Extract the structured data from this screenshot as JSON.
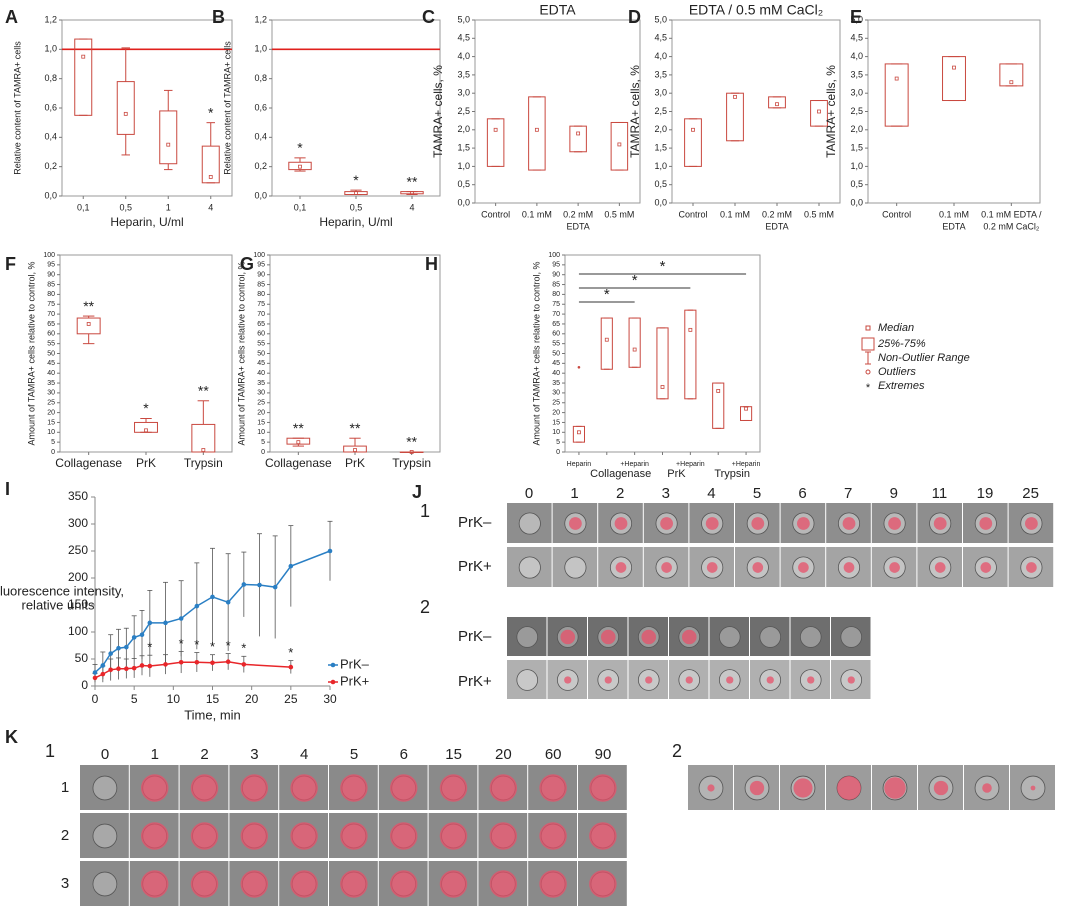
{
  "chart_data": [
    {
      "panel": "A",
      "type": "box",
      "ylabel": "Relative content of TAMRA+ cells",
      "xlabel": "Heparin, U/ml",
      "color": "#c9483f",
      "categories": [
        "0,1",
        "0,5",
        "1",
        "4"
      ],
      "ylim": [
        0,
        1.2
      ],
      "yticks": [
        {
          "value": 0,
          "label": "0,0"
        },
        {
          "value": 0.2,
          "label": "0,2"
        },
        {
          "value": 0.4,
          "label": "0,4"
        },
        {
          "value": 0.6,
          "label": "0,6"
        },
        {
          "value": 0.8,
          "label": "0,8"
        },
        {
          "value": 1,
          "label": "1,0"
        },
        {
          "value": 1.2,
          "label": "1,2"
        }
      ],
      "reference_line": 1,
      "reference_color": "#e0201c",
      "boxes": [
        {
          "min": 0.55,
          "q1": 0.55,
          "median": 0.95,
          "q3": 1.07,
          "max": 1.07
        },
        {
          "min": 0.28,
          "q1": 0.42,
          "median": 0.56,
          "q3": 0.78,
          "max": 1.01
        },
        {
          "min": 0.18,
          "q1": 0.22,
          "median": 0.35,
          "q3": 0.58,
          "max": 0.72
        },
        {
          "min": 0.09,
          "q1": 0.09,
          "median": 0.13,
          "q3": 0.34,
          "max": 0.5,
          "label": "*"
        }
      ]
    },
    {
      "panel": "B",
      "type": "box",
      "ylabel": "Relative content of TAMRA+ cells",
      "xlabel": "Heparin, U/ml",
      "color": "#c9483f",
      "categories": [
        "0,1",
        "0,5",
        "4"
      ],
      "ylim": [
        0,
        1.2
      ],
      "yticks": [
        {
          "value": 0,
          "label": "0,0"
        },
        {
          "value": 0.2,
          "label": "0,2"
        },
        {
          "value": 0.4,
          "label": "0,4"
        },
        {
          "value": 0.6,
          "label": "0,6"
        },
        {
          "value": 0.8,
          "label": "0,8"
        },
        {
          "value": 1,
          "label": "1,0"
        },
        {
          "value": 1.2,
          "label": "1,2"
        }
      ],
      "reference_line": 1,
      "reference_color": "#e0201c",
      "boxes": [
        {
          "min": 0.17,
          "q1": 0.18,
          "median": 0.2,
          "q3": 0.23,
          "max": 0.26,
          "label": "*"
        },
        {
          "min": 0.01,
          "q1": 0.01,
          "median": 0.02,
          "q3": 0.03,
          "max": 0.04,
          "label": "*"
        },
        {
          "min": 0.01,
          "q1": 0.015,
          "median": 0.02,
          "q3": 0.03,
          "max": 0.03,
          "label": "**"
        }
      ]
    },
    {
      "panel": "C",
      "type": "box",
      "title": "EDTA",
      "ylabel": "TAMRA+ cells, %",
      "color": "#c9483f",
      "categories": [
        "Control",
        "0.1 mM",
        "0.2 mM",
        "0.5 mM"
      ],
      "group_labels": [
        "EDTA"
      ],
      "ylim": [
        0,
        5
      ],
      "yticks": [
        {
          "value": 0,
          "label": "0,0"
        },
        {
          "value": 0.5,
          "label": "0,5"
        },
        {
          "value": 1,
          "label": "1,0"
        },
        {
          "value": 1.5,
          "label": "1,5"
        },
        {
          "value": 2,
          "label": "2,0"
        },
        {
          "value": 2.5,
          "label": "2,5"
        },
        {
          "value": 3,
          "label": "3,0"
        },
        {
          "value": 3.5,
          "label": "3,5"
        },
        {
          "value": 4,
          "label": "4,0"
        },
        {
          "value": 4.5,
          "label": "4,5"
        },
        {
          "value": 5,
          "label": "5,0"
        }
      ],
      "boxes": [
        {
          "min": 1,
          "q1": 1,
          "median": 2,
          "q3": 2.3,
          "max": 2.3
        },
        {
          "min": 0.9,
          "q1": 0.9,
          "median": 2,
          "q3": 2.9,
          "max": 2.9
        },
        {
          "min": 1.4,
          "q1": 1.4,
          "median": 1.9,
          "q3": 2.1,
          "max": 2.1
        },
        {
          "min": 0.9,
          "q1": 0.9,
          "median": 1.6,
          "q3": 2.2,
          "max": 2.2
        }
      ]
    },
    {
      "panel": "D",
      "type": "box",
      "title": "EDTA / 0.5 mM CaCl₂",
      "ylabel": "TAMRA+ cells, %",
      "color": "#c9483f",
      "categories": [
        "Control",
        "0.1 mM",
        "0.2 mM",
        "0.5 mM"
      ],
      "group_labels": [
        "EDTA"
      ],
      "ylim": [
        0,
        5
      ],
      "yticks": [
        {
          "value": 0,
          "label": "0,0"
        },
        {
          "value": 0.5,
          "label": "0,5"
        },
        {
          "value": 1,
          "label": "1,0"
        },
        {
          "value": 1.5,
          "label": "1,5"
        },
        {
          "value": 2,
          "label": "2,0"
        },
        {
          "value": 2.5,
          "label": "2,5"
        },
        {
          "value": 3,
          "label": "3,0"
        },
        {
          "value": 3.5,
          "label": "3,5"
        },
        {
          "value": 4,
          "label": "4,0"
        },
        {
          "value": 4.5,
          "label": "4,5"
        },
        {
          "value": 5,
          "label": "5,0"
        }
      ],
      "boxes": [
        {
          "min": 1,
          "q1": 1,
          "median": 2,
          "q3": 2.3,
          "max": 2.3
        },
        {
          "min": 1.7,
          "q1": 1.7,
          "median": 2.9,
          "q3": 3,
          "max": 3
        },
        {
          "min": 2.6,
          "q1": 2.6,
          "median": 2.7,
          "q3": 2.9,
          "max": 2.9
        },
        {
          "min": 2.1,
          "q1": 2.1,
          "median": 2.5,
          "q3": 2.8,
          "max": 2.8
        }
      ]
    },
    {
      "panel": "E",
      "type": "box",
      "ylabel": "TAMRA+ cells, %",
      "color": "#c9483f",
      "categories": [
        "Control",
        "0.1 mM",
        "0.1 mM EDTA /"
      ],
      "group_labels": [
        "EDTA",
        "0.2 mM CaCl₂"
      ],
      "ylim": [
        0,
        5
      ],
      "yticks": [
        {
          "value": 0,
          "label": "0,0"
        },
        {
          "value": 0.5,
          "label": "0,5"
        },
        {
          "value": 1,
          "label": "1,0"
        },
        {
          "value": 1.5,
          "label": "1,5"
        },
        {
          "value": 2,
          "label": "2,0"
        },
        {
          "value": 2.5,
          "label": "2,5"
        },
        {
          "value": 3,
          "label": "3,0"
        },
        {
          "value": 3.5,
          "label": "3,5"
        },
        {
          "value": 4,
          "label": "4,0"
        },
        {
          "value": 4.5,
          "label": "4,5"
        },
        {
          "value": 5,
          "label": "5,0"
        }
      ],
      "boxes": [
        {
          "min": 2.1,
          "q1": 2.1,
          "median": 3.4,
          "q3": 3.8,
          "max": 3.8
        },
        {
          "min": 2.8,
          "q1": 2.8,
          "median": 3.7,
          "q3": 4,
          "max": 4
        },
        {
          "min": 3.2,
          "q1": 3.2,
          "median": 3.3,
          "q3": 3.8,
          "max": 3.8
        }
      ]
    },
    {
      "panel": "F",
      "type": "box",
      "ylabel": "Amount of TAMRA+ cells relative to control, %",
      "color": "#c9483f",
      "categories": [
        "Collagenase",
        "PrK",
        "Trypsin"
      ],
      "ylim": [
        0,
        100
      ],
      "yticks": [
        0,
        5,
        10,
        15,
        20,
        25,
        30,
        35,
        40,
        45,
        50,
        55,
        60,
        65,
        70,
        75,
        80,
        85,
        90,
        95,
        100
      ],
      "boxes": [
        {
          "min": 55,
          "q1": 60,
          "median": 65,
          "q3": 68,
          "max": 69,
          "label": "**"
        },
        {
          "min": 10,
          "q1": 10,
          "median": 11,
          "q3": 15,
          "max": 17,
          "label": "*"
        },
        {
          "min": 0,
          "q1": 0,
          "median": 1,
          "q3": 14,
          "max": 26,
          "label": "**"
        }
      ]
    },
    {
      "panel": "G",
      "type": "box",
      "ylabel": "Amount of TAMRA+ cells relative to control, %",
      "color": "#c9483f",
      "categories": [
        "Collagenase",
        "PrK",
        "Trypsin"
      ],
      "ylim": [
        0,
        100
      ],
      "yticks": [
        0,
        5,
        10,
        15,
        20,
        25,
        30,
        35,
        40,
        45,
        50,
        55,
        60,
        65,
        70,
        75,
        80,
        85,
        90,
        95,
        100
      ],
      "boxes": [
        {
          "min": 3,
          "q1": 4,
          "median": 5,
          "q3": 7,
          "max": 7,
          "label": "**"
        },
        {
          "min": 0,
          "q1": 0,
          "median": 1,
          "q3": 3,
          "max": 7,
          "label": "**"
        },
        {
          "min": 0,
          "q1": 0,
          "median": 0,
          "q3": 0,
          "max": 0,
          "label": "**"
        }
      ]
    },
    {
      "panel": "H",
      "type": "box",
      "ylabel": "Amount of TAMRA+ cells relative to control, %",
      "color": "#c9483f",
      "categories": [
        "Heparin",
        null,
        "+Heparin",
        null,
        "+Heparin",
        null,
        "+Heparin"
      ],
      "group_labels": [
        "Collagenase",
        "PrK",
        "Trypsin"
      ],
      "comparison_labels": [
        "*",
        "*",
        "*"
      ],
      "ylim": [
        0,
        100
      ],
      "yticks": [
        0,
        5,
        10,
        15,
        20,
        25,
        30,
        35,
        40,
        45,
        50,
        55,
        60,
        65,
        70,
        75,
        80,
        85,
        90,
        95,
        100
      ],
      "boxes": [
        {
          "min": 5,
          "q1": 5,
          "median": 10,
          "q3": 13,
          "max": 13,
          "outliers": [
            43
          ]
        },
        {
          "min": 42,
          "q1": 42,
          "median": 57,
          "q3": 68,
          "max": 68
        },
        {
          "min": 43,
          "q1": 43,
          "median": 52,
          "q3": 68,
          "max": 68
        },
        {
          "min": 27,
          "q1": 27,
          "median": 33,
          "q3": 63,
          "max": 63
        },
        {
          "min": 27,
          "q1": 27,
          "median": 62,
          "q3": 72,
          "max": 72
        },
        {
          "min": 12,
          "q1": 12,
          "median": 31,
          "q3": 35,
          "max": 35
        },
        {
          "min": 16,
          "q1": 16,
          "median": 22,
          "q3": 23,
          "max": 23
        }
      ]
    },
    {
      "panel": "I",
      "type": "line",
      "ylabel": [
        "Fluorescence intensity,",
        "relative units"
      ],
      "xlabel": "Time, min",
      "xlim": [
        0,
        30
      ],
      "xticks": [
        0,
        5,
        10,
        15,
        20,
        25,
        30
      ],
      "ylim": [
        0,
        350
      ],
      "yticks": [
        0,
        50,
        100,
        150,
        200,
        250,
        300,
        350
      ],
      "legend": "lower right",
      "series": [
        {
          "name": "PrK–",
          "color": "#2a7fc4",
          "x": [
            0,
            1,
            2,
            3,
            4,
            5,
            6,
            7,
            9,
            11,
            13,
            15,
            17,
            19,
            21,
            23,
            25,
            30
          ],
          "values": [
            25,
            38,
            60,
            70,
            72,
            90,
            95,
            117,
            117,
            125,
            148,
            165,
            155,
            188,
            187,
            183,
            222,
            250
          ],
          "errors": [
            15,
            25,
            35,
            35,
            35,
            40,
            45,
            60,
            75,
            70,
            80,
            90,
            90,
            60,
            95,
            95,
            75,
            55
          ]
        },
        {
          "name": "PrK+",
          "color": "#e8262a",
          "x": [
            0,
            1,
            2,
            3,
            4,
            5,
            6,
            7,
            9,
            11,
            13,
            15,
            17,
            19,
            25
          ],
          "values": [
            15,
            22,
            30,
            32,
            32,
            33,
            38,
            37,
            40,
            44,
            44,
            43,
            45,
            40,
            35
          ],
          "errors": [
            8,
            15,
            20,
            20,
            18,
            18,
            18,
            20,
            18,
            20,
            18,
            15,
            15,
            15,
            12
          ]
        }
      ],
      "significance": {
        "x": [
          7,
          11,
          13,
          15,
          17,
          19,
          25
        ],
        "labels": [
          "*",
          "*",
          "*",
          "*",
          "*",
          "*",
          "*"
        ]
      }
    }
  ],
  "box_legend": [
    "Median",
    "25%-75%",
    "Non-Outlier Range",
    "Outliers",
    "Extremes"
  ],
  "image_panels": {
    "J": {
      "panel": "J",
      "part1": {
        "label": "1",
        "times": [
          "0",
          "1",
          "2",
          "3",
          "4",
          "5",
          "6",
          "7",
          "9",
          "11",
          "19",
          "25"
        ],
        "rows": [
          "PrK–",
          "PrK+"
        ]
      },
      "part2": {
        "label": "2",
        "rows": [
          "PrK–",
          "PrK+"
        ]
      }
    },
    "K": {
      "panel": "K",
      "part1": {
        "label": "1",
        "times": [
          "0",
          "1",
          "2",
          "3",
          "4",
          "5",
          "6",
          "15",
          "20",
          "60",
          "90"
        ],
        "rows": [
          "1",
          "2",
          "3"
        ]
      },
      "part2": {
        "label": "2"
      }
    }
  }
}
